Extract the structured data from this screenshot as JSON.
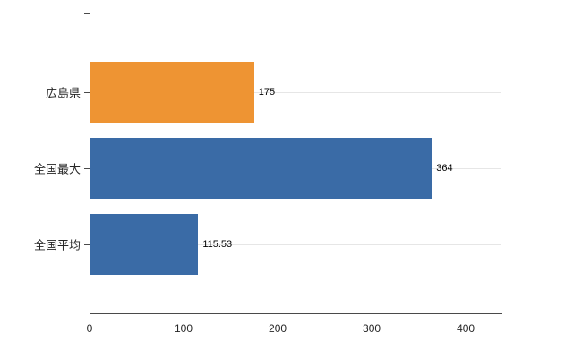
{
  "chart_data": {
    "type": "bar",
    "orientation": "horizontal",
    "title": "",
    "categories": [
      "広島県",
      "全国最大",
      "全国平均"
    ],
    "values": [
      175,
      364,
      115.53
    ],
    "value_labels": [
      "175",
      "364",
      "115.53"
    ],
    "bar_colors": [
      "#ee9433",
      "#3a6ba6",
      "#3a6ba6"
    ],
    "xlim": [
      0,
      438
    ],
    "xticks": [
      0,
      100,
      200,
      300,
      400
    ],
    "xtick_labels": [
      "0",
      "100",
      "200",
      "300",
      "400"
    ],
    "grid": "horizontal-category-lines",
    "legend": "none",
    "colors": {
      "grid": "#e6e6e6",
      "axis": "#4a4a4a",
      "text": "#262626",
      "background": "#ffffff"
    }
  }
}
